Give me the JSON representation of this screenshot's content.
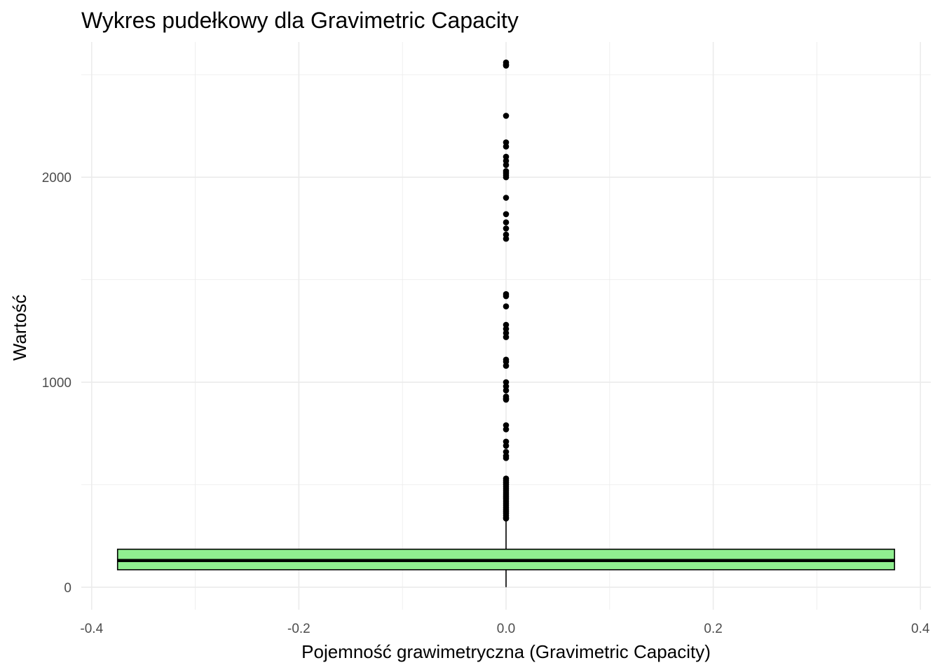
{
  "chart_data": {
    "type": "box",
    "title": "Wykres pudełkowy dla Gravimetric Capacity",
    "xlabel": "Pojemność grawimetryczna (Gravimetric Capacity)",
    "ylabel": "Wartość",
    "xlim": [
      -0.41,
      0.41
    ],
    "ylim": [
      -110,
      2660
    ],
    "x_ticks": [
      -0.4,
      -0.2,
      0.0,
      0.2,
      0.4
    ],
    "x_tick_labels": [
      "-0.4",
      "-0.2",
      "0.0",
      "0.2",
      "0.4"
    ],
    "y_ticks": [
      0,
      1000,
      2000
    ],
    "y_tick_labels": [
      "0",
      "1000",
      "2000"
    ],
    "grid": true,
    "box": {
      "x_center": 0.0,
      "x_left": -0.375,
      "x_right": 0.375,
      "q1": 85,
      "median": 130,
      "q3": 185,
      "whisker_low": 0,
      "whisker_high": 330,
      "fill": "#90ee90",
      "outline": "#000000"
    },
    "outliers": [
      2560,
      2550,
      2545,
      2300,
      2170,
      2150,
      2100,
      2080,
      2060,
      2030,
      2020,
      2010,
      2000,
      1900,
      1820,
      1780,
      1750,
      1720,
      1700,
      1430,
      1420,
      1370,
      1280,
      1260,
      1240,
      1220,
      1110,
      1100,
      1080,
      1000,
      980,
      960,
      930,
      920,
      915,
      790,
      770,
      710,
      690,
      660,
      640,
      630,
      530,
      520,
      510,
      500,
      490,
      480,
      470,
      460,
      450,
      440,
      430,
      420,
      410,
      400,
      390,
      380,
      370,
      360,
      350,
      340,
      335
    ],
    "colors": {
      "box_fill": "#90ee90",
      "grid": "#ebebeb",
      "points": "#000000",
      "tick_text": "#4d4d4d"
    }
  }
}
